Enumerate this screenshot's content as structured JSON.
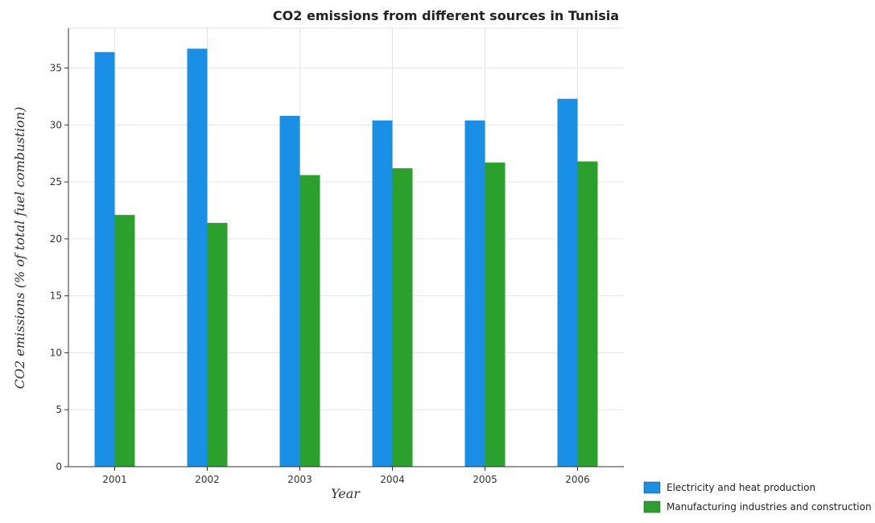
{
  "chart_data": {
    "type": "bar",
    "title": "CO2 emissions from different sources in Tunisia",
    "xlabel": "Year",
    "ylabel": "CO2 emissions (% of total fuel combustion)",
    "categories": [
      "2001",
      "2002",
      "2003",
      "2004",
      "2005",
      "2006"
    ],
    "series": [
      {
        "name": "Electricity and heat production",
        "color": "#1a8fe6",
        "values": [
          36.4,
          36.7,
          30.8,
          30.4,
          30.4,
          32.3
        ]
      },
      {
        "name": "Manufacturing industries and construction",
        "color": "#2ca02c",
        "values": [
          22.1,
          21.4,
          25.6,
          26.2,
          26.7,
          26.8
        ]
      }
    ],
    "ylim": [
      0,
      38.5
    ],
    "yticks": [
      0,
      5,
      10,
      15,
      20,
      25,
      30,
      35
    ],
    "grid": true,
    "legend_position": "bottom-right"
  }
}
